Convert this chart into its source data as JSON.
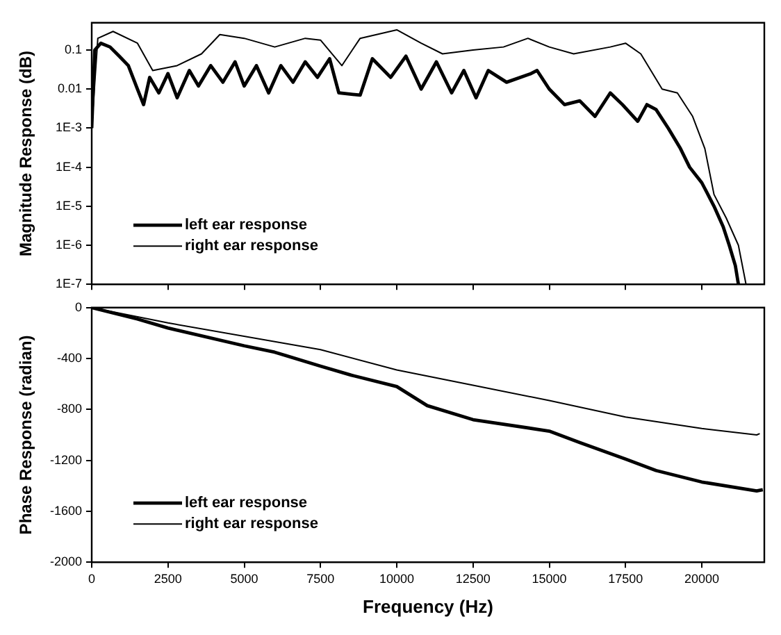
{
  "chart_data": [
    {
      "type": "line",
      "ylabel": "Magnitude Response (dB)",
      "log": true,
      "legend": "bottom left",
      "tick_labels": "y",
      "xlim": [
        0,
        22050
      ],
      "xticks": [
        0,
        2500,
        5000,
        7500,
        10000,
        12500,
        15000,
        17500,
        20000
      ],
      "ylim": [
        1e-07,
        0.5
      ],
      "yticks": [
        {
          "value": 1e-07,
          "label": "1E-7"
        },
        {
          "value": 1e-06,
          "label": "1E-6"
        },
        {
          "value": 1e-05,
          "label": "1E-5"
        },
        {
          "value": 0.0001,
          "label": "1E-4"
        },
        {
          "value": 0.001,
          "label": "1E-3"
        },
        0.01,
        0.1
      ],
      "series": [
        {
          "name": "left ear response",
          "color": "#000000",
          "x": [
            0,
            100,
            300,
            600,
            900,
            1200,
            1500,
            1700,
            1900,
            2200,
            2500,
            2800,
            3200,
            3500,
            3900,
            4300,
            4700,
            5000,
            5400,
            5800,
            6200,
            6600,
            7000,
            7400,
            7800,
            8100,
            8800,
            9200,
            9800,
            10300,
            10800,
            11300,
            11800,
            12200,
            12600,
            13000,
            13600,
            14400,
            14600,
            15000,
            15500,
            16000,
            16500,
            17000,
            17400,
            17900,
            18200,
            18500,
            18900,
            19300,
            19600,
            20000,
            20400,
            20700,
            20900,
            21100,
            21200
          ],
          "values": [
            0.001,
            0.1,
            0.15,
            0.12,
            0.07,
            0.04,
            0.01,
            0.004,
            0.02,
            0.008,
            0.025,
            0.006,
            0.03,
            0.012,
            0.04,
            0.015,
            0.05,
            0.012,
            0.04,
            0.008,
            0.04,
            0.015,
            0.05,
            0.02,
            0.06,
            0.008,
            0.007,
            0.06,
            0.02,
            0.07,
            0.01,
            0.05,
            0.008,
            0.03,
            0.006,
            0.03,
            0.015,
            0.025,
            0.03,
            0.01,
            0.004,
            0.005,
            0.002,
            0.008,
            0.004,
            0.0015,
            0.004,
            0.003,
            0.001,
            0.0003,
            0.0001,
            4e-05,
            1e-05,
            3e-06,
            1e-06,
            3e-07,
            1e-07
          ]
        },
        {
          "name": "right ear response",
          "color": "#000000",
          "x": [
            0,
            200,
            700,
            1500,
            2000,
            2800,
            3600,
            4200,
            5000,
            6000,
            7000,
            7500,
            8200,
            8800,
            10000,
            10800,
            11500,
            12500,
            13500,
            14300,
            15000,
            15800,
            17000,
            17500,
            18000,
            18700,
            19200,
            19700,
            20100,
            20400,
            20800,
            21200,
            21450
          ],
          "values": [
            0.001,
            0.2,
            0.3,
            0.15,
            0.03,
            0.04,
            0.08,
            0.25,
            0.2,
            0.12,
            0.2,
            0.18,
            0.04,
            0.2,
            0.33,
            0.15,
            0.08,
            0.1,
            0.12,
            0.2,
            0.12,
            0.08,
            0.12,
            0.15,
            0.08,
            0.01,
            0.008,
            0.002,
            0.0003,
            2e-05,
            5e-06,
            1e-06,
            1e-07
          ]
        }
      ]
    },
    {
      "type": "line",
      "xlabel": "Frequency (Hz)",
      "ylabel": "Phase Response (radian)",
      "legend": "bottom left",
      "xlim": [
        0,
        22050
      ],
      "xticks": [
        0,
        2500,
        5000,
        7500,
        10000,
        12500,
        15000,
        17500,
        20000
      ],
      "ylim": [
        -2000,
        0
      ],
      "yticks": [
        -2000,
        -1600,
        -1200,
        -800,
        -400,
        0
      ],
      "series": [
        {
          "name": "left ear response",
          "color": "#000000",
          "x": [
            0,
            1500,
            2500,
            5000,
            6000,
            7500,
            8500,
            10000,
            11000,
            12500,
            15000,
            16000,
            17500,
            18500,
            20000,
            21800,
            22000
          ],
          "values": [
            0,
            -90,
            -160,
            -300,
            -350,
            -460,
            -530,
            -620,
            -770,
            -880,
            -970,
            -1060,
            -1190,
            -1280,
            -1370,
            -1440,
            -1430
          ]
        },
        {
          "name": "right ear response",
          "color": "#000000",
          "x": [
            0,
            2500,
            7500,
            10000,
            12500,
            15000,
            17500,
            20000,
            21800,
            21900
          ],
          "values": [
            0,
            -120,
            -330,
            -490,
            -610,
            -730,
            -860,
            -950,
            -1000,
            -990
          ]
        }
      ]
    }
  ]
}
